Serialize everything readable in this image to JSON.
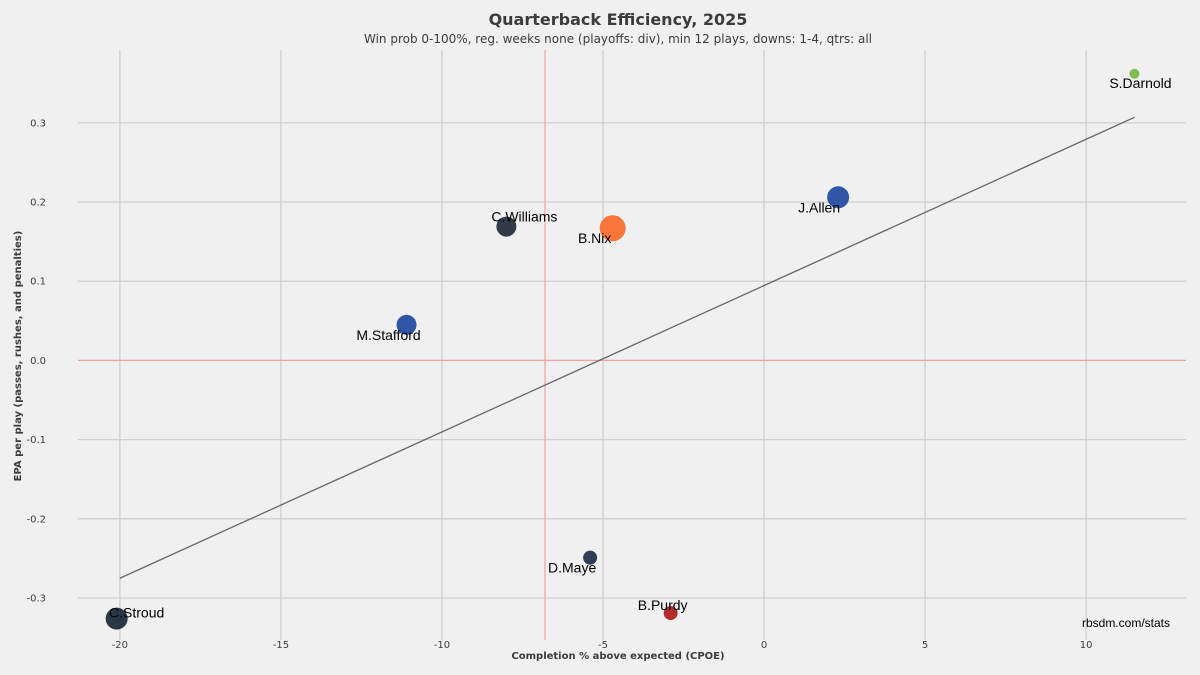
{
  "chart_data": {
    "type": "scatter",
    "title": "Quarterback Efficiency, 2025",
    "subtitle": "Win prob 0-100%, reg. weeks none (playoffs: div), min 12 plays, downs: 1-4, qtrs: all",
    "xlabel": "Completion % above expected (CPOE)",
    "ylabel": "EPA per play (passes, rushes, and penalties)",
    "xlim": [
      -21.3,
      13.1
    ],
    "ylim": [
      -0.353,
      0.392
    ],
    "x_ticks": [
      -20,
      -15,
      -10,
      -5,
      0,
      5,
      10
    ],
    "x_tick_labels": [
      "-20",
      "-15",
      "-10",
      "-5",
      "0",
      "5",
      "10"
    ],
    "y_ticks": [
      -0.3,
      -0.2,
      -0.1,
      0.0,
      0.1,
      0.2,
      0.3
    ],
    "y_tick_labels": [
      "-0.3",
      "-0.2",
      "-0.1",
      "0.0",
      "0.1",
      "0.2",
      "0.3"
    ],
    "grid": true,
    "reference_lines": {
      "mean_x": -6.8,
      "mean_y": 0.0,
      "color": "#f2a0a0"
    },
    "trendline": {
      "x": [
        -20.0,
        11.5
      ],
      "y": [
        -0.275,
        0.307
      ],
      "color": "#666666"
    },
    "points": [
      {
        "name": "S.Darnold",
        "x": 11.5,
        "y": 0.362,
        "size": 5,
        "color": "#77b843"
      },
      {
        "name": "J.Allen",
        "x": 2.3,
        "y": 0.206,
        "size": 11,
        "color": "#1f4aa0"
      },
      {
        "name": "C.Williams",
        "x": -8.0,
        "y": 0.169,
        "size": 10,
        "color": "#222a3a"
      },
      {
        "name": "B.Nix",
        "x": -4.7,
        "y": 0.167,
        "size": 13,
        "color": "#fb6b2a"
      },
      {
        "name": "M.Stafford",
        "x": -11.1,
        "y": 0.045,
        "size": 10,
        "color": "#1f4aa0"
      },
      {
        "name": "D.Maye",
        "x": -5.4,
        "y": -0.249,
        "size": 7,
        "color": "#1e2f4a"
      },
      {
        "name": "B.Purdy",
        "x": -2.9,
        "y": -0.319,
        "size": 7,
        "color": "#b01c1c"
      },
      {
        "name": "C.Stroud",
        "x": -20.1,
        "y": -0.326,
        "size": 11,
        "color": "#172838"
      }
    ],
    "source_note": "rbsdm.com/stats"
  }
}
